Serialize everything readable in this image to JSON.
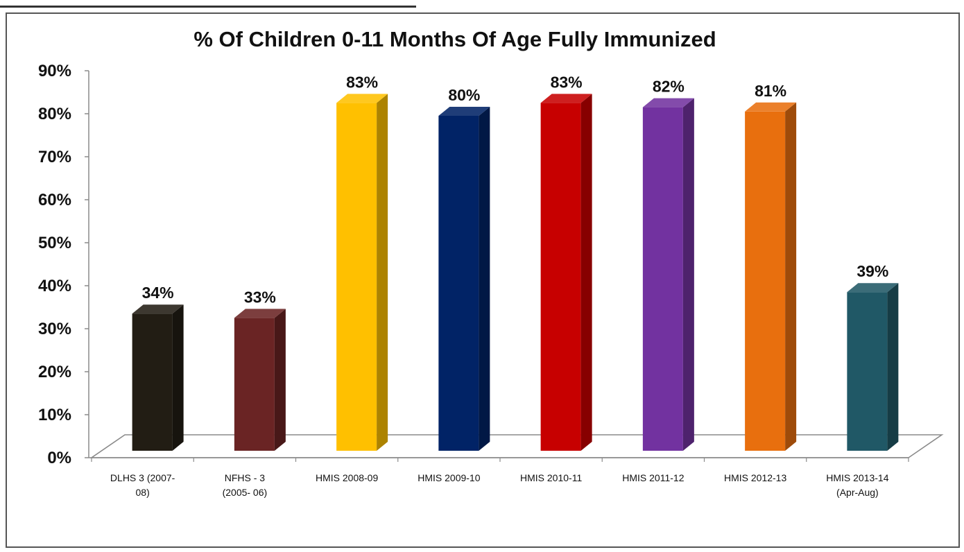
{
  "chart_data": {
    "type": "bar",
    "title": "% Of Children 0-11 Months Of Age Fully Immunized",
    "categories": [
      [
        "DLHS 3 (2007-",
        "08)"
      ],
      [
        "NFHS - 3",
        "(2005- 06)"
      ],
      [
        "HMIS 2008-09"
      ],
      [
        "HMIS 2009-10"
      ],
      [
        "HMIS 2010-11"
      ],
      [
        "HMIS 2011-12"
      ],
      [
        "HMIS 2012-13"
      ],
      [
        "HMIS 2013-14",
        "(Apr-Aug)"
      ]
    ],
    "values": [
      34,
      33,
      83,
      80,
      83,
      82,
      81,
      39
    ],
    "data_labels": [
      "34%",
      "33%",
      "83%",
      "80%",
      "83%",
      "82%",
      "81%",
      "39%"
    ],
    "colors": [
      "#221d14",
      "#6a2424",
      "#ffc000",
      "#012366",
      "#c70000",
      "#7232a0",
      "#e86f0e",
      "#205866"
    ],
    "ylim": [
      0,
      90
    ],
    "yticks": [
      0,
      10,
      20,
      30,
      40,
      50,
      60,
      70,
      80,
      90
    ],
    "ytick_labels": [
      "0%",
      "10%",
      "20%",
      "30%",
      "40%",
      "50%",
      "60%",
      "70%",
      "80%",
      "90%"
    ],
    "style": "3d",
    "grid": false,
    "legend": "none"
  }
}
